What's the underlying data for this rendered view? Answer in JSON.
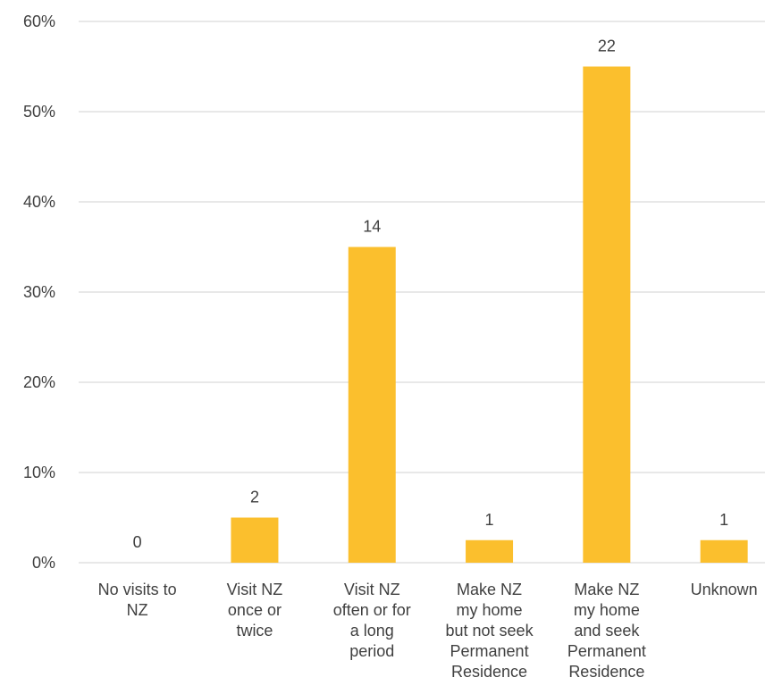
{
  "chart_data": {
    "type": "bar",
    "categories": [
      [
        "No visits to",
        "NZ"
      ],
      [
        "Visit NZ",
        "once or",
        "twice"
      ],
      [
        "Visit NZ",
        "often or for",
        "a long",
        "period"
      ],
      [
        "Make NZ",
        "my home",
        "but not seek",
        "Permanent",
        "Residence"
      ],
      [
        "Make NZ",
        "my home",
        "and seek",
        "Permanent",
        "Residence"
      ],
      [
        "Unknown"
      ]
    ],
    "values": [
      0,
      5,
      35,
      2.5,
      55,
      2.5
    ],
    "data_labels": [
      "0",
      "2",
      "14",
      "1",
      "22",
      "1"
    ],
    "ylim": [
      0,
      60
    ],
    "y_ticks": [
      0,
      10,
      20,
      30,
      40,
      50,
      60
    ],
    "y_tick_labels": [
      "0%",
      "10%",
      "20%",
      "30%",
      "40%",
      "50%",
      "60%"
    ],
    "bar_color": "#FBBF2D",
    "grid_color": "#D9D9D9",
    "grid": true,
    "legend": "none"
  }
}
